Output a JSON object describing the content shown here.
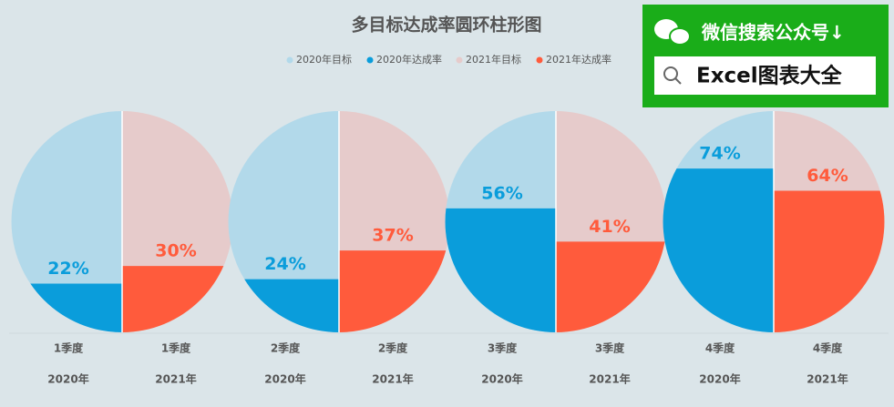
{
  "chart_data": {
    "type": "half-pie",
    "title": "多目标达成率圆环柱形图",
    "categories": [
      "1季度",
      "2季度",
      "3季度",
      "4季度"
    ],
    "sub_labels": [
      "2020年",
      "2021年"
    ],
    "ylim": [
      0,
      100
    ],
    "series": [
      {
        "name": "2020年目标",
        "color": "#b2d9ea",
        "values": [
          100,
          100,
          100,
          100
        ]
      },
      {
        "name": "2020年达成率",
        "color": "#0a9ddb",
        "values": [
          22,
          24,
          56,
          74
        ],
        "value_labels": [
          "22%",
          "24%",
          "56%",
          "74%"
        ]
      },
      {
        "name": "2021年目标",
        "color": "#e6cbcb",
        "values": [
          100,
          100,
          100,
          100
        ]
      },
      {
        "name": "2021年达成率",
        "color": "#ff5b3c",
        "values": [
          30,
          37,
          41,
          64
        ],
        "value_labels": [
          "30%",
          "37%",
          "41%",
          "64%"
        ]
      }
    ]
  },
  "watermark": {
    "line1": "微信搜索公众号↓",
    "line2": "Excel图表大全"
  }
}
